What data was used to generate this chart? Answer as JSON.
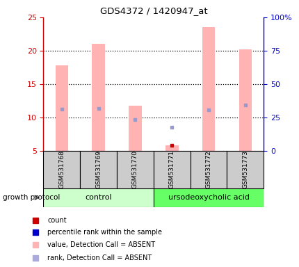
{
  "title": "GDS4372 / 1420947_at",
  "samples": [
    "GSM531768",
    "GSM531769",
    "GSM531770",
    "GSM531771",
    "GSM531772",
    "GSM531773"
  ],
  "bar_heights": [
    17.8,
    21.0,
    11.8,
    5.8,
    23.5,
    20.2
  ],
  "bar_bottom": 5.0,
  "bar_color": "#ffb3b3",
  "blue_marker_y": [
    11.2,
    11.4,
    9.7,
    8.5,
    11.1,
    11.9
  ],
  "blue_marker_color": "#9999cc",
  "red_dot_y": [
    null,
    null,
    null,
    5.8,
    null,
    null
  ],
  "red_dot_color": "#cc0000",
  "ylim_left": [
    5,
    25
  ],
  "ylim_right": [
    0,
    100
  ],
  "yticks_left": [
    5,
    10,
    15,
    20,
    25
  ],
  "yticks_right": [
    0,
    25,
    50,
    75,
    100
  ],
  "ytick_labels_right": [
    "0",
    "25",
    "50",
    "75",
    "100%"
  ],
  "left_axis_color": "#cc0000",
  "right_axis_color": "#0000cc",
  "group_control_color": "#ccffcc",
  "group_treatment_color": "#66ff66",
  "group_label_control": "control",
  "group_label_treatment": "ursodeoxycholic acid",
  "growth_protocol_label": "growth protocol",
  "legend_colors": [
    "#cc0000",
    "#0000cc",
    "#ffb3b3",
    "#aaaadd"
  ],
  "legend_labels": [
    "count",
    "percentile rank within the sample",
    "value, Detection Call = ABSENT",
    "rank, Detection Call = ABSENT"
  ],
  "bar_width": 0.35,
  "sample_box_color": "#cccccc",
  "sample_box_edge_color": "#000000",
  "fig_width": 4.31,
  "fig_height": 3.84,
  "fig_dpi": 100
}
